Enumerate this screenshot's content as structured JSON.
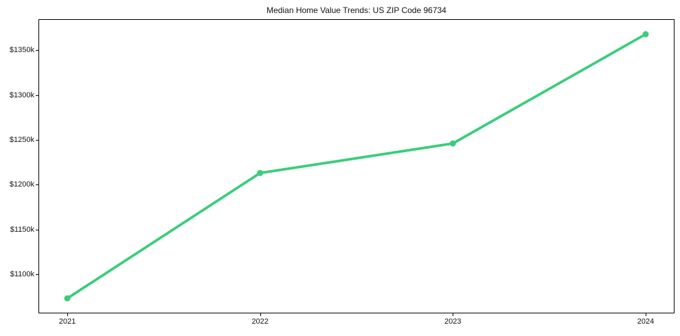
{
  "chart_data": {
    "type": "line",
    "title": "Median Home Value Trends: US ZIP Code 96734",
    "x": [
      "2021",
      "2022",
      "2023",
      "2024"
    ],
    "values": [
      1073,
      1213,
      1246,
      1368
    ],
    "unit": "$k",
    "yticks": [
      1100,
      1150,
      1200,
      1250,
      1300,
      1350
    ],
    "ytick_labels": [
      "$1100k",
      "$1150k",
      "$1200k",
      "$1250k",
      "$1300k",
      "$1350k"
    ],
    "ylim": [
      1057,
      1384
    ],
    "xlabel": "",
    "ylabel": "",
    "grid": false,
    "legend": "none",
    "line_color": "#3ccd7b",
    "marker": "circle"
  }
}
